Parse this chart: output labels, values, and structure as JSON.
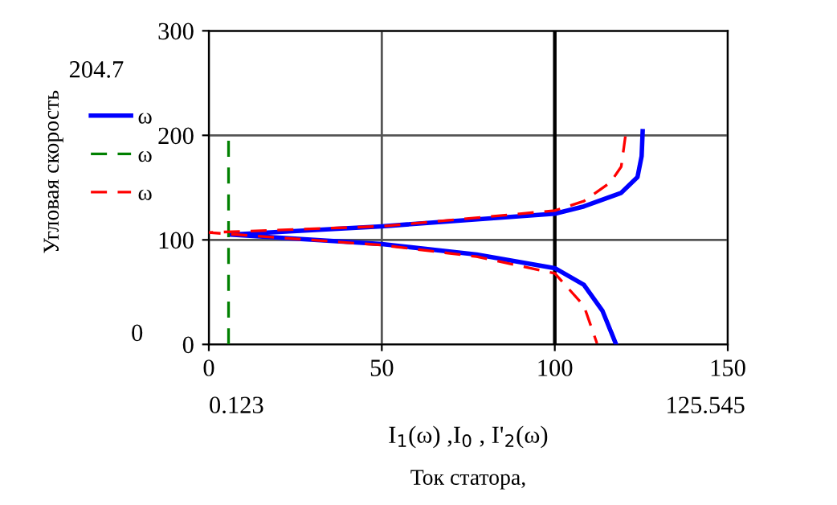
{
  "chart_data": {
    "type": "line",
    "xlabel": "I$_{1}$(ω) ,I$_{0}$ , I'$_{2}$(ω)",
    "annotations": [
      "204.7",
      "0",
      "0.123",
      "125.545",
      "Ток статора,",
      "Угловая скорость"
    ],
    "xlim": [
      0,
      150
    ],
    "ylim": [
      0,
      300
    ],
    "xticks": [
      0,
      50,
      100,
      150
    ],
    "yticks": [
      0,
      100,
      200,
      300
    ],
    "grid": true,
    "legend": "left",
    "marker": "none",
    "ref_lines": [
      {
        "axis": "x",
        "value": 100,
        "color": "#000000"
      }
    ],
    "series": [
      {
        "name": "ω",
        "color": "#0000ff",
        "line_style": "solid",
        "x": [
          125.4,
          125.1,
          123.9,
          119.2,
          108.4,
          100,
          50,
          6.2,
          50,
          77.4,
          100,
          108.4,
          113.8,
          117.6
        ],
        "values": [
          204,
          180,
          160,
          145,
          132,
          125,
          113,
          105,
          96,
          86,
          73,
          57,
          32,
          1
        ]
      },
      {
        "name": "ω",
        "color": "#008000",
        "line_style": "dashed",
        "x": [
          5.7,
          5.7
        ],
        "values": [
          0,
          197
        ]
      },
      {
        "name": "ω",
        "color": "#ff0000",
        "line_style": "dashed",
        "x": [
          120.4,
          119.2,
          116.1,
          108.4,
          100,
          50,
          0,
          50,
          77.4,
          100,
          108.4,
          112.2
        ],
        "values": [
          199,
          170,
          155,
          137,
          128,
          113,
          107,
          95,
          84,
          68,
          37,
          1
        ]
      }
    ]
  }
}
